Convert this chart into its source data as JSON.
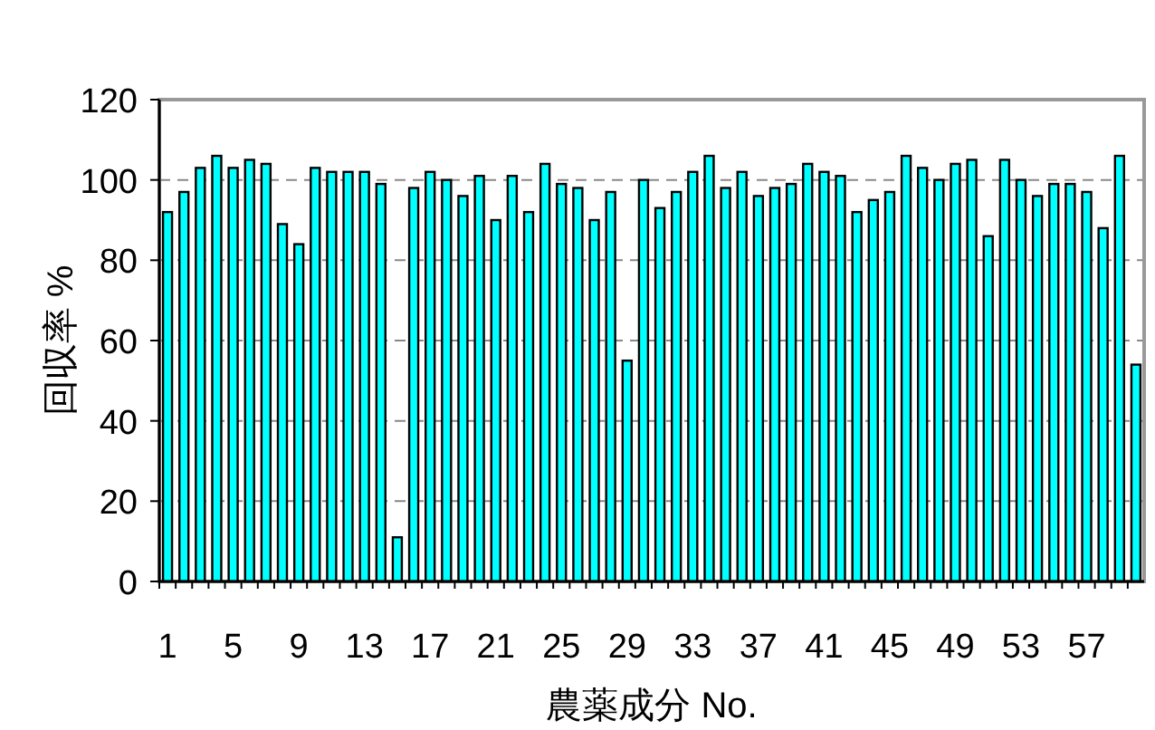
{
  "chart_data": {
    "type": "bar",
    "xlabel": "農薬成分 No.",
    "ylabel": "回収率 %",
    "categories": [
      "1",
      null,
      null,
      null,
      "5",
      null,
      null,
      null,
      "9",
      null,
      null,
      null,
      "13",
      null,
      null,
      null,
      "17",
      null,
      null,
      null,
      "21",
      null,
      null,
      null,
      "25",
      null,
      null,
      null,
      "29",
      null,
      null,
      null,
      "33",
      null,
      null,
      null,
      "37",
      null,
      null,
      null,
      "41",
      null,
      null,
      null,
      "45",
      null,
      null,
      null,
      "49",
      null,
      null,
      null,
      "53",
      null,
      null,
      null,
      "57",
      null,
      null,
      null
    ],
    "values": [
      92,
      97,
      103,
      106,
      103,
      105,
      104,
      89,
      84,
      103,
      102,
      102,
      102,
      99,
      11,
      98,
      102,
      100,
      96,
      101,
      90,
      101,
      92,
      104,
      99,
      98,
      90,
      97,
      55,
      100,
      93,
      97,
      102,
      106,
      98,
      102,
      96,
      98,
      99,
      104,
      102,
      101,
      92,
      95,
      97,
      106,
      103,
      100,
      104,
      105,
      86,
      105,
      100,
      96,
      99,
      99,
      97,
      88,
      106,
      54
    ],
    "color": "#00ffff",
    "ylim": [
      0,
      120
    ],
    "yticks": [
      0,
      20,
      40,
      60,
      80,
      100,
      120
    ],
    "grid": "y"
  }
}
